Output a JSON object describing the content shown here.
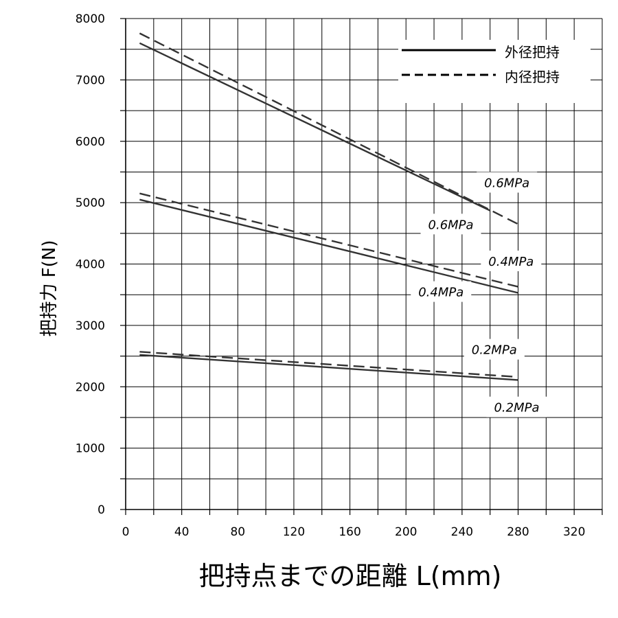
{
  "chart_data": {
    "type": "line",
    "xlabel": "把持点までの距離 L(mm)",
    "ylabel": "把持力 F(N)",
    "xlim": [
      0,
      340
    ],
    "ylim": [
      0,
      8000
    ],
    "x_ticks": [
      0,
      40,
      80,
      120,
      160,
      200,
      240,
      280,
      320
    ],
    "y_ticks": [
      0,
      1000,
      2000,
      3000,
      4000,
      5000,
      6000,
      7000,
      8000
    ],
    "grid": true,
    "legend_position": "top-right",
    "legend": [
      {
        "label": "外径把持",
        "style": "solid"
      },
      {
        "label": "内径把持",
        "style": "dashed"
      }
    ],
    "series": [
      {
        "group": "外径把持",
        "pressure": "0.6MPa",
        "style": "solid",
        "x": [
          10,
          260
        ],
        "y": [
          7600,
          4870
        ]
      },
      {
        "group": "内径把持",
        "pressure": "0.6MPa",
        "style": "dashed",
        "x": [
          10,
          280
        ],
        "y": [
          7760,
          4650
        ]
      },
      {
        "group": "外径把持",
        "pressure": "0.4MPa",
        "style": "solid",
        "x": [
          10,
          280
        ],
        "y": [
          5050,
          3530
        ]
      },
      {
        "group": "内径把持",
        "pressure": "0.4MPa",
        "style": "dashed",
        "x": [
          10,
          280
        ],
        "y": [
          5150,
          3630
        ]
      },
      {
        "group": "外径把持",
        "pressure": "0.2MPa",
        "style": "solid",
        "x": [
          10,
          280
        ],
        "y": [
          2520,
          2110
        ]
      },
      {
        "group": "内径把持",
        "pressure": "0.2MPa",
        "style": "dashed",
        "x": [
          10,
          280
        ],
        "y": [
          2570,
          2160
        ]
      }
    ],
    "annotations": [
      {
        "text": "0.6MPa",
        "x": 272,
        "y": 5320
      },
      {
        "text": "0.6MPa",
        "x": 232,
        "y": 4640
      },
      {
        "text": "0.4MPa",
        "x": 275,
        "y": 4040
      },
      {
        "text": "0.4MPa",
        "x": 225,
        "y": 3540
      },
      {
        "text": "0.2MPa",
        "x": 263,
        "y": 2600
      },
      {
        "text": "0.2MPa",
        "x": 279,
        "y": 1660
      }
    ]
  },
  "colors": {
    "line": "#333333",
    "grid": "#000000",
    "label_bg": "#ffffff"
  }
}
